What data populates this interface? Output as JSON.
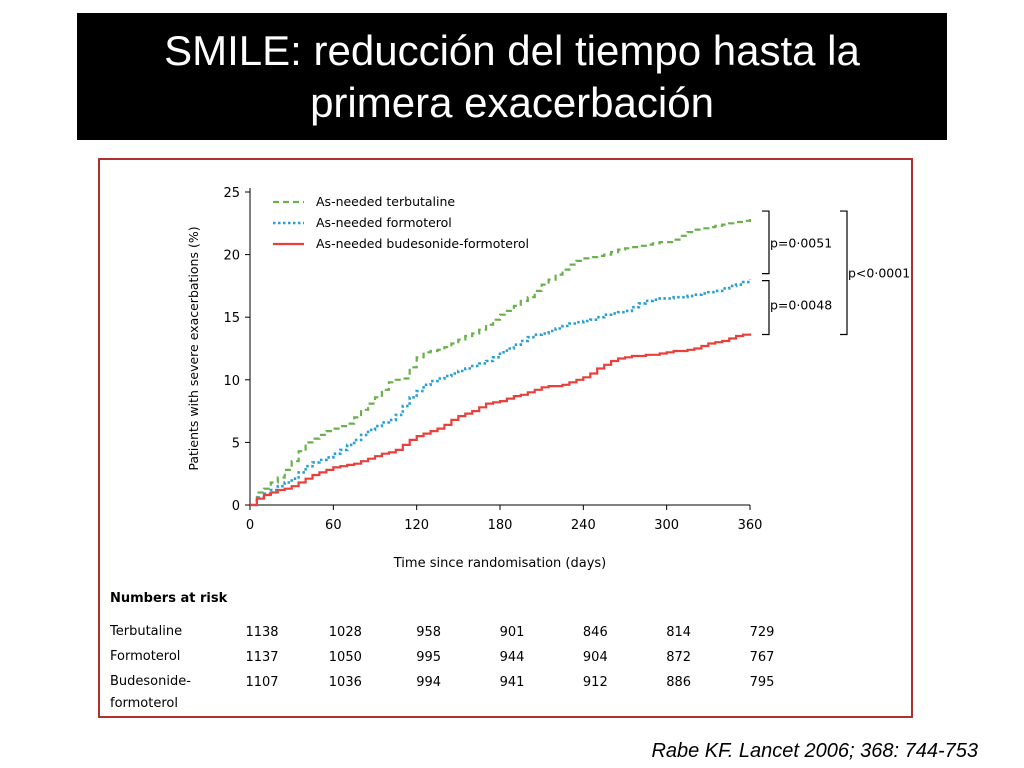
{
  "slide": {
    "title_line1": "SMILE: reducción del tiempo hasta la",
    "title_line2": "primera exacerbación",
    "citation": "Rabe KF. Lancet 2006; 368: 744-753"
  },
  "colors": {
    "terbutaline": "#6ab04c",
    "formoterol": "#2a9fd6",
    "budesonide_formoterol": "#e8413c",
    "frame": "#b03030"
  },
  "chart_data": {
    "type": "line",
    "title": "",
    "xlabel": "Time since randomisation (days)",
    "ylabel": "Patients with severe exacerbations (%)",
    "xlim": [
      0,
      360
    ],
    "ylim": [
      0,
      25
    ],
    "xticks": [
      0,
      60,
      120,
      180,
      240,
      300,
      360
    ],
    "yticks": [
      0,
      5,
      10,
      15,
      20,
      25
    ],
    "legend_position": "top-left",
    "series": [
      {
        "name": "As-needed terbutaline",
        "style": "dashed",
        "x": [
          0,
          5,
          10,
          15,
          20,
          25,
          30,
          35,
          40,
          45,
          50,
          55,
          60,
          65,
          70,
          75,
          80,
          85,
          90,
          95,
          100,
          105,
          110,
          115,
          120,
          125,
          130,
          135,
          140,
          145,
          150,
          155,
          160,
          165,
          170,
          175,
          180,
          185,
          190,
          195,
          200,
          205,
          210,
          215,
          220,
          225,
          230,
          235,
          240,
          245,
          250,
          255,
          260,
          265,
          270,
          275,
          280,
          285,
          290,
          295,
          300,
          305,
          310,
          315,
          320,
          325,
          330,
          335,
          340,
          345,
          350,
          355,
          360
        ],
        "y": [
          0,
          1.0,
          1.3,
          1.8,
          2.2,
          2.8,
          3.5,
          4.3,
          5.0,
          5.3,
          5.6,
          5.9,
          6.1,
          6.3,
          6.5,
          7.0,
          7.6,
          8.1,
          8.6,
          9.2,
          9.8,
          10.0,
          10.1,
          11.0,
          11.8,
          12.2,
          12.3,
          12.4,
          12.6,
          12.9,
          13.2,
          13.5,
          13.7,
          14.0,
          14.4,
          14.8,
          15.2,
          15.5,
          15.9,
          16.3,
          16.6,
          17.1,
          17.6,
          18.0,
          18.4,
          18.8,
          19.2,
          19.5,
          19.7,
          19.8,
          19.9,
          20.0,
          20.2,
          20.4,
          20.5,
          20.6,
          20.7,
          20.8,
          20.9,
          21.0,
          21.0,
          21.2,
          21.5,
          21.8,
          22.0,
          22.1,
          22.2,
          22.3,
          22.4,
          22.5,
          22.6,
          22.7,
          23.0
        ]
      },
      {
        "name": "As-needed formoterol",
        "style": "dotted",
        "x": [
          0,
          5,
          10,
          15,
          20,
          25,
          30,
          35,
          40,
          45,
          50,
          55,
          60,
          65,
          70,
          75,
          80,
          85,
          90,
          95,
          100,
          105,
          110,
          115,
          120,
          125,
          130,
          135,
          140,
          145,
          150,
          155,
          160,
          165,
          170,
          175,
          180,
          185,
          190,
          195,
          200,
          205,
          210,
          215,
          220,
          225,
          230,
          235,
          240,
          245,
          250,
          255,
          260,
          265,
          270,
          275,
          280,
          285,
          290,
          295,
          300,
          305,
          310,
          315,
          320,
          325,
          330,
          335,
          340,
          345,
          350,
          355,
          360
        ],
        "y": [
          0,
          0.6,
          0.9,
          1.2,
          1.5,
          1.8,
          2.1,
          2.6,
          3.1,
          3.4,
          3.6,
          3.8,
          4.1,
          4.4,
          4.8,
          5.2,
          5.6,
          6.0,
          6.3,
          6.6,
          6.8,
          7.2,
          7.9,
          8.6,
          9.1,
          9.6,
          9.9,
          10.1,
          10.3,
          10.5,
          10.7,
          10.9,
          11.1,
          11.3,
          11.5,
          11.8,
          12.2,
          12.5,
          12.8,
          13.1,
          13.4,
          13.6,
          13.7,
          13.9,
          14.1,
          14.3,
          14.5,
          14.6,
          14.7,
          14.8,
          15.0,
          15.2,
          15.3,
          15.4,
          15.5,
          15.8,
          16.1,
          16.3,
          16.4,
          16.5,
          16.5,
          16.6,
          16.6,
          16.7,
          16.8,
          16.9,
          17.0,
          17.1,
          17.3,
          17.5,
          17.6,
          17.8,
          18.0
        ]
      },
      {
        "name": "As-needed budesonide-formoterol",
        "style": "solid",
        "x": [
          0,
          5,
          10,
          15,
          20,
          25,
          30,
          35,
          40,
          45,
          50,
          55,
          60,
          65,
          70,
          75,
          80,
          85,
          90,
          95,
          100,
          105,
          110,
          115,
          120,
          125,
          130,
          135,
          140,
          145,
          150,
          155,
          160,
          165,
          170,
          175,
          180,
          185,
          190,
          195,
          200,
          205,
          210,
          215,
          220,
          225,
          230,
          235,
          240,
          245,
          250,
          255,
          260,
          265,
          270,
          275,
          280,
          285,
          290,
          295,
          300,
          305,
          310,
          315,
          320,
          325,
          330,
          335,
          340,
          345,
          350,
          355,
          360
        ],
        "y": [
          0,
          0.5,
          0.8,
          1.0,
          1.2,
          1.3,
          1.5,
          1.8,
          2.1,
          2.4,
          2.6,
          2.8,
          3.0,
          3.1,
          3.2,
          3.3,
          3.5,
          3.7,
          3.9,
          4.1,
          4.2,
          4.4,
          4.8,
          5.2,
          5.5,
          5.7,
          5.9,
          6.1,
          6.4,
          6.8,
          7.1,
          7.3,
          7.5,
          7.8,
          8.1,
          8.2,
          8.3,
          8.5,
          8.7,
          8.8,
          9.0,
          9.2,
          9.4,
          9.5,
          9.5,
          9.6,
          9.8,
          10.0,
          10.2,
          10.5,
          10.9,
          11.2,
          11.5,
          11.7,
          11.8,
          11.9,
          11.9,
          12.0,
          12.0,
          12.1,
          12.2,
          12.3,
          12.3,
          12.4,
          12.5,
          12.7,
          12.9,
          13.0,
          13.1,
          13.3,
          13.5,
          13.6,
          13.7
        ]
      }
    ],
    "annotations": [
      {
        "text": "p=0·0051",
        "between": [
          "As-needed terbutaline",
          "As-needed formoterol"
        ]
      },
      {
        "text": "p=0·0048",
        "between": [
          "As-needed formoterol",
          "As-needed budesonide-formoterol"
        ]
      },
      {
        "text": "p<0·0001",
        "between": [
          "As-needed terbutaline",
          "As-needed budesonide-formoterol"
        ]
      }
    ],
    "risk_table": {
      "heading": "Numbers at risk",
      "rows": [
        {
          "label_lines": [
            "Terbutaline"
          ],
          "values": [
            "1138",
            "1028",
            "958",
            "901",
            "846",
            "814",
            "729"
          ]
        },
        {
          "label_lines": [
            "Formoterol"
          ],
          "values": [
            "1137",
            "1050",
            "995",
            "944",
            "904",
            "872",
            "767"
          ]
        },
        {
          "label_lines": [
            "Budesonide-",
            "formoterol"
          ],
          "values": [
            "1107",
            "1036",
            "994",
            "941",
            "912",
            "886",
            "795"
          ]
        }
      ]
    }
  }
}
